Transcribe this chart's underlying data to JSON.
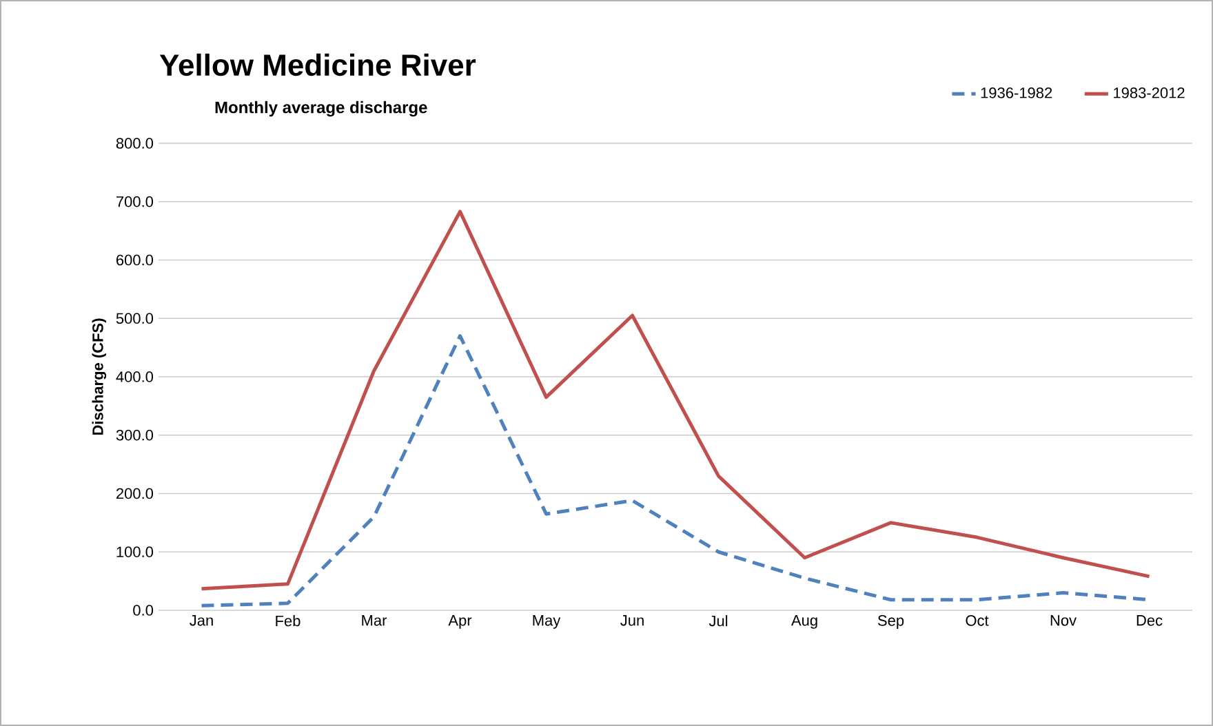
{
  "chart_data": {
    "type": "line",
    "title": "Yellow Medicine River",
    "subtitle": "Monthly average discharge",
    "ylabel": "Discharge (CFS)",
    "categories": [
      "Jan",
      "Feb",
      "Mar",
      "Apr",
      "May",
      "Jun",
      "Jul",
      "Aug",
      "Sep",
      "Oct",
      "Nov",
      "Dec"
    ],
    "series": [
      {
        "name": "1936-1982",
        "color": "#4f81bd",
        "line_style": "dashed",
        "values": [
          8,
          12,
          160,
          470,
          165,
          188,
          100,
          55,
          18,
          18,
          30,
          18
        ]
      },
      {
        "name": "1983-2012",
        "color": "#c0504d",
        "line_style": "solid",
        "values": [
          37,
          45,
          410,
          683,
          365,
          505,
          230,
          90,
          150,
          125,
          90,
          58
        ]
      }
    ],
    "ylim": [
      0,
      800
    ],
    "yticks": [
      {
        "value": 0,
        "label": "0.0"
      },
      {
        "value": 100,
        "label": "100.0"
      },
      {
        "value": 200,
        "label": "200.0"
      },
      {
        "value": 300,
        "label": "300.0"
      },
      {
        "value": 400,
        "label": "400.0"
      },
      {
        "value": 500,
        "label": "500.0"
      },
      {
        "value": 600,
        "label": "600.0"
      },
      {
        "value": 700,
        "label": "700.0"
      },
      {
        "value": 800,
        "label": "800.0"
      }
    ],
    "grid": "y",
    "legend": "top right",
    "marker": "none"
  }
}
